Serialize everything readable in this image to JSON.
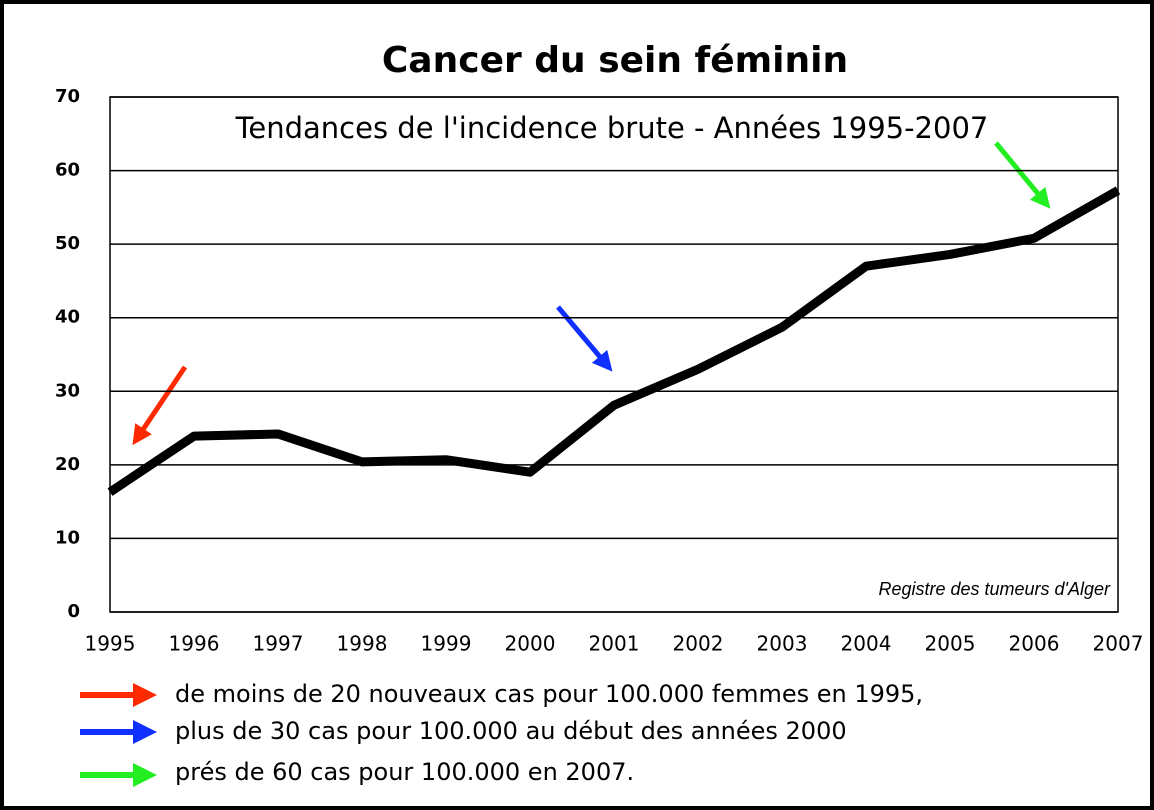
{
  "chart_data": {
    "type": "line",
    "title": "Cancer du sein féminin",
    "subtitle": "Tendances de l'incidence brute - Années 1995-2007",
    "source": "Registre des tumeurs d'Alger",
    "categories": [
      "1995",
      "1996",
      "1997",
      "1998",
      "1999",
      "2000",
      "2001",
      "2002",
      "2003",
      "2004",
      "2005",
      "2006",
      "2007"
    ],
    "series": [
      {
        "name": "Incidence brute",
        "color": "#000000",
        "values": [
          16.3,
          23.9,
          24.2,
          20.4,
          20.7,
          19.0,
          28.1,
          33.0,
          38.7,
          47.0,
          48.6,
          50.8,
          57.3
        ]
      }
    ],
    "ylim": [
      0,
      70
    ],
    "yticks": [
      0,
      10,
      20,
      30,
      40,
      50,
      60,
      70
    ],
    "grid": true,
    "notes": [
      "de moins de 20 nouveaux cas pour 100.000 femmes en 1995,",
      "plus de 30 cas pour 100.000 au début des années 2000",
      "prés de 60 cas pour 100.000 en 2007."
    ]
  }
}
